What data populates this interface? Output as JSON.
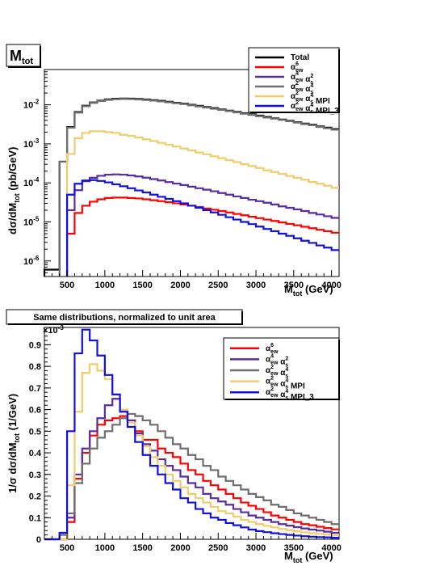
{
  "panel_top_label": "M",
  "panel_top_label_sub": "tot",
  "panel_bottom_title": "Same distributions, normalized to unit area",
  "bottom_exponent": "×10",
  "bottom_exponent_power": "-3",
  "series_colors": {
    "Total": "#000000",
    "aew6": "#ff0000",
    "aew4as2": "#5a2d9c",
    "aew2as4": "#6e6e6e",
    "mpi": "#f0cc6a",
    "mpi3": "#1010e0"
  },
  "chart_data": [
    {
      "type": "line",
      "scale": "log",
      "xlabel": "M",
      "xlabel_sub": "tot",
      "xlabel_unit": "(GeV)",
      "ylabel": "dσ/dM",
      "ylabel_sub": "tot",
      "ylabel_unit": "(pb/GeV)",
      "xlim": [
        200,
        4100
      ],
      "ylim": [
        4e-07,
        0.08
      ],
      "x_ticks": [
        500,
        1000,
        1500,
        2000,
        2500,
        3000,
        3500,
        4000
      ],
      "y_ticks": [
        {
          "v": 1e-06,
          "base": "10",
          "exp": "-6"
        },
        {
          "v": 1e-05,
          "base": "10",
          "exp": "-5"
        },
        {
          "v": 0.0001,
          "base": "10",
          "exp": "-4"
        },
        {
          "v": 0.001,
          "base": "10",
          "exp": "-3"
        },
        {
          "v": 0.01,
          "base": "10",
          "exp": "-2"
        }
      ],
      "x": [
        200,
        300,
        400,
        500,
        600,
        700,
        800,
        900,
        1000,
        1100,
        1200,
        1300,
        1400,
        1500,
        1600,
        1700,
        1800,
        1900,
        2000,
        2100,
        2200,
        2300,
        2400,
        2500,
        2600,
        2700,
        2800,
        2900,
        3000,
        3100,
        3200,
        3300,
        3400,
        3500,
        3600,
        3700,
        3800,
        3900,
        4000
      ],
      "series": [
        {
          "name": "Total",
          "key": "Total",
          "values": [
            6e-07,
            6e-07,
            0.00035,
            0.0027,
            0.0065,
            0.0095,
            0.0115,
            0.0128,
            0.0138,
            0.0143,
            0.0145,
            0.0144,
            0.0141,
            0.0137,
            0.0132,
            0.0126,
            0.012,
            0.0113,
            0.0107,
            0.01,
            0.0094,
            0.0088,
            0.0082,
            0.0076,
            0.0071,
            0.0066,
            0.0061,
            0.0057,
            0.0053,
            0.0049,
            0.0045,
            0.0042,
            0.0039,
            0.0036,
            0.0033,
            0.0031,
            0.0028,
            0.0026,
            0.0024
          ]
        },
        {
          "name": "α_ew^6",
          "key": "aew6",
          "values": [
            null,
            null,
            null,
            5e-06,
            1.7e-05,
            2.6e-05,
            3.3e-05,
            3.8e-05,
            4.1e-05,
            4.2e-05,
            4.2e-05,
            4.1e-05,
            4e-05,
            3.8e-05,
            3.6e-05,
            3.4e-05,
            3.2e-05,
            3e-05,
            2.8e-05,
            2.6e-05,
            2.4e-05,
            2.2e-05,
            2.05e-05,
            1.9e-05,
            1.75e-05,
            1.6e-05,
            1.48e-05,
            1.36e-05,
            1.25e-05,
            1.15e-05,
            1.06e-05,
            9.7e-06,
            8.9e-06,
            8.2e-06,
            7.5e-06,
            6.9e-06,
            6.3e-06,
            5.8e-06,
            5.3e-06
          ]
        },
        {
          "name": "α_ew^4 α_s^2",
          "key": "aew4as2",
          "values": [
            null,
            null,
            null,
            2e-05,
            6.5e-05,
            0.00011,
            0.000135,
            0.000152,
            0.000162,
            0.000165,
            0.000162,
            0.000155,
            0.000146,
            0.000136,
            0.000125,
            0.000115,
            0.000105,
            9.6e-05,
            8.8e-05,
            8e-05,
            7.3e-05,
            6.7e-05,
            6.1e-05,
            5.5e-05,
            5e-05,
            4.5e-05,
            4.1e-05,
            3.7e-05,
            3.4e-05,
            3.1e-05,
            2.8e-05,
            2.5e-05,
            2.3e-05,
            2.1e-05,
            1.9e-05,
            1.7e-05,
            1.55e-05,
            1.4e-05,
            1.27e-05
          ]
        },
        {
          "name": "α_ew^2 α_s^4",
          "key": "aew2as4",
          "values": [
            null,
            null,
            0.00035,
            0.0026,
            0.0063,
            0.0092,
            0.0112,
            0.0125,
            0.0134,
            0.0139,
            0.0141,
            0.014,
            0.0137,
            0.0133,
            0.0128,
            0.0122,
            0.0116,
            0.011,
            0.0104,
            0.0097,
            0.0091,
            0.0085,
            0.0079,
            0.0074,
            0.0069,
            0.0064,
            0.0059,
            0.0055,
            0.0051,
            0.0047,
            0.0044,
            0.0041,
            0.0038,
            0.0035,
            0.0032,
            0.003,
            0.0027,
            0.0025,
            0.0023
          ]
        },
        {
          "name": "α_ew^2 α_s^4 MPI",
          "key": "mpi",
          "values": [
            null,
            null,
            null,
            0.00055,
            0.0014,
            0.0019,
            0.0021,
            0.0021,
            0.002,
            0.0019,
            0.0017,
            0.0016,
            0.00145,
            0.0013,
            0.00118,
            0.00106,
            0.00095,
            0.00085,
            0.00076,
            0.00068,
            0.0006,
            0.00054,
            0.00048,
            0.00043,
            0.00038,
            0.00034,
            0.0003,
            0.00027,
            0.00024,
            0.00021,
            0.00019,
            0.00017,
            0.00015,
            0.000135,
            0.00012,
            0.000106,
            9.5e-05,
            8.5e-05,
            7.5e-05
          ]
        },
        {
          "name": "α_ew^2 α_s^4 MPI_3",
          "key": "mpi3",
          "values": [
            null,
            null,
            null,
            5e-05,
            9.5e-05,
            0.000115,
            0.000118,
            0.000112,
            0.000103,
            9.2e-05,
            8.2e-05,
            7.3e-05,
            6.4e-05,
            5.7e-05,
            5e-05,
            4.4e-05,
            3.9e-05,
            3.4e-05,
            3e-05,
            2.6e-05,
            2.3e-05,
            2e-05,
            1.75e-05,
            1.52e-05,
            1.32e-05,
            1.15e-05,
            1e-05,
            8.8e-06,
            7.6e-06,
            6.6e-06,
            5.8e-06,
            5e-06,
            4.4e-06,
            3.8e-06,
            3.3e-06,
            2.9e-06,
            2.5e-06,
            2.2e-06,
            1.9e-06
          ]
        }
      ]
    },
    {
      "type": "line",
      "scale": "linear",
      "xlabel": "M",
      "xlabel_sub": "tot",
      "xlabel_unit": "(GeV)",
      "ylabel": "1/σ dσ/dM",
      "ylabel_sub": "tot",
      "ylabel_unit": "(1/GeV)",
      "y_multiplier": "x10^-3",
      "xlim": [
        200,
        4100
      ],
      "ylim": [
        0,
        0.98
      ],
      "x_ticks": [
        500,
        1000,
        1500,
        2000,
        2500,
        3000,
        3500,
        4000
      ],
      "y_ticks": [
        0,
        0.1,
        0.2,
        0.3,
        0.4,
        0.5,
        0.6,
        0.7,
        0.8,
        0.9
      ],
      "x": [
        200,
        300,
        400,
        500,
        600,
        700,
        800,
        900,
        1000,
        1100,
        1200,
        1300,
        1400,
        1500,
        1600,
        1700,
        1800,
        1900,
        2000,
        2100,
        2200,
        2300,
        2400,
        2500,
        2600,
        2700,
        2800,
        2900,
        3000,
        3100,
        3200,
        3300,
        3400,
        3500,
        3600,
        3700,
        3800,
        3900,
        4000
      ],
      "series": [
        {
          "name": "α_ew^6",
          "key": "aew6",
          "values": [
            0,
            0,
            0,
            0.08,
            0.28,
            0.4,
            0.48,
            0.53,
            0.55,
            0.56,
            0.57,
            0.55,
            0.5,
            0.46,
            0.46,
            0.42,
            0.4,
            0.38,
            0.35,
            0.32,
            0.3,
            0.27,
            0.25,
            0.23,
            0.21,
            0.19,
            0.17,
            0.155,
            0.14,
            0.125,
            0.11,
            0.1,
            0.09,
            0.08,
            0.07,
            0.065,
            0.058,
            0.052,
            0.046
          ]
        },
        {
          "name": "α_ew^4 α_s^2",
          "key": "aew4as2",
          "values": [
            0,
            0,
            0,
            0.1,
            0.3,
            0.42,
            0.5,
            0.56,
            0.62,
            0.65,
            0.6,
            0.55,
            0.49,
            0.44,
            0.41,
            0.37,
            0.34,
            0.32,
            0.29,
            0.26,
            0.24,
            0.21,
            0.19,
            0.175,
            0.16,
            0.14,
            0.125,
            0.11,
            0.1,
            0.09,
            0.08,
            0.07,
            0.063,
            0.056,
            0.05,
            0.045,
            0.04,
            0.035,
            0.03
          ]
        },
        {
          "name": "α_ew^2 α_s^4",
          "key": "aew2as4",
          "values": [
            0,
            0,
            0.02,
            0.12,
            0.26,
            0.35,
            0.42,
            0.47,
            0.5,
            0.53,
            0.56,
            0.58,
            0.57,
            0.55,
            0.53,
            0.5,
            0.47,
            0.44,
            0.42,
            0.39,
            0.37,
            0.34,
            0.32,
            0.29,
            0.27,
            0.25,
            0.23,
            0.21,
            0.195,
            0.18,
            0.16,
            0.15,
            0.135,
            0.12,
            0.11,
            0.1,
            0.09,
            0.08,
            0.07
          ]
        },
        {
          "name": "α_ew^2 α_s^4 MPI",
          "key": "mpi",
          "values": [
            0,
            0,
            0,
            0.25,
            0.59,
            0.77,
            0.81,
            0.78,
            0.74,
            0.67,
            0.6,
            0.54,
            0.48,
            0.43,
            0.38,
            0.34,
            0.3,
            0.27,
            0.24,
            0.21,
            0.19,
            0.17,
            0.15,
            0.13,
            0.12,
            0.105,
            0.09,
            0.08,
            0.07,
            0.062,
            0.055,
            0.048,
            0.042,
            0.037,
            0.032,
            0.028,
            0.025,
            0.022,
            0.019
          ]
        },
        {
          "name": "α_ew^2 α_s^4 MPI_3",
          "key": "mpi3",
          "values": [
            0,
            0,
            0.03,
            0.5,
            0.86,
            0.97,
            0.92,
            0.85,
            0.76,
            0.67,
            0.59,
            0.52,
            0.45,
            0.39,
            0.34,
            0.3,
            0.26,
            0.23,
            0.19,
            0.17,
            0.14,
            0.12,
            0.1,
            0.09,
            0.075,
            0.065,
            0.055,
            0.045,
            0.038,
            0.033,
            0.028,
            0.024,
            0.02,
            0.017,
            0.014,
            0.012,
            0.01,
            0.009,
            0.007
          ]
        }
      ]
    }
  ]
}
